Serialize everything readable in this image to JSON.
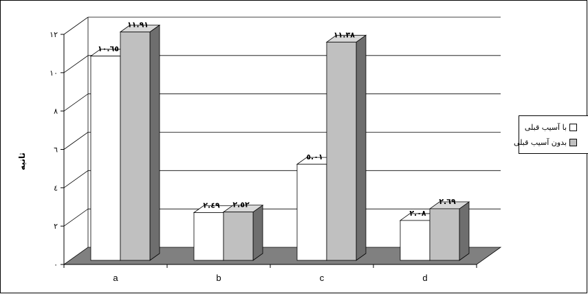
{
  "chart_data": {
    "type": "bar",
    "title": "",
    "xlabel": "",
    "ylabel": "ثانیه",
    "categories": [
      "a",
      "b",
      "c",
      "d"
    ],
    "ylim": [
      0,
      12
    ],
    "yticks": [
      "۰",
      "۲",
      "٤",
      "٦",
      "٨",
      "۱۰",
      "۱۲"
    ],
    "grid": true,
    "legend_position": "right",
    "series": [
      {
        "name": "با آسیب قبلی",
        "values": [
          10.65,
          2.49,
          5.01,
          2.08
        ],
        "labels": [
          "۱۰.٦٥",
          "۲.٤٩",
          "٥.۰۱",
          "۲.۰۸"
        ],
        "color": "#ffffff"
      },
      {
        "name": "بدون آسیب قبلی",
        "values": [
          11.91,
          2.52,
          11.38,
          2.69
        ],
        "labels": [
          "۱۱.۹۱",
          "۲.٥۲",
          "۱۱.۳۸",
          "۲.٦۹"
        ],
        "color": "#c0c0c0"
      }
    ]
  },
  "colors": {
    "floor": "#808080",
    "bar_side_light": "#cfcfcf",
    "bar_side_dark": "#6e6e6e"
  }
}
